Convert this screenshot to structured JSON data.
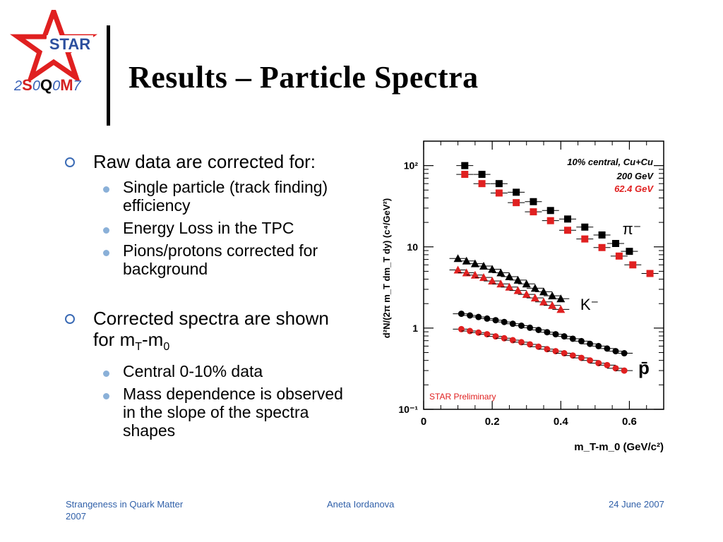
{
  "logo": {
    "star_text": "STAR",
    "bottom": {
      "d1": "2",
      "s": "S",
      "d2": "0",
      "q": "Q",
      "d3": "0",
      "m": "M",
      "d4": "7"
    }
  },
  "title": "Results – Particle Spectra",
  "bullets": [
    {
      "text": "Raw data are corrected for:",
      "sub": [
        "Single particle (track finding) efficiency",
        "Energy Loss in the TPC",
        "Pions/protons corrected for background"
      ]
    },
    {
      "text": "Corrected spectra are shown for m",
      "sub_t": "T",
      "text2": "-m",
      "sub_0": "0",
      "sub": [
        "Central 0-10% data",
        "Mass dependence is observed in the slope of the spectra shapes"
      ]
    }
  ],
  "footer": {
    "left": "Strangeness in Quark Matter 2007",
    "center": "Aneta Iordanova",
    "right": "24 June 2007"
  },
  "colors": {
    "accent": "#3b6bb5",
    "red": "#e02020",
    "footer": "#2f5fa8"
  },
  "chart_data": {
    "type": "scatter",
    "ylabel": "d²N/(2π m_T dm_T dy) (c⁴/GeV²)",
    "xlabel": "m_T-m_0 (GeV/c²)",
    "xlim": [
      0,
      0.7
    ],
    "ylim_log": [
      0.1,
      200
    ],
    "y_scale": "log",
    "x_ticks": [
      "0",
      "0.2",
      "0.4",
      "0.6"
    ],
    "y_ticks": [
      "10⁻¹",
      "1",
      "10",
      "10²"
    ],
    "annotations": {
      "system": "10% central, Cu+Cu",
      "energy_200": "200 GeV",
      "energy_62": "62.4 GeV",
      "preliminary": "STAR Preliminary",
      "pi": "π⁻",
      "k": "K⁻",
      "p": "p̄"
    },
    "series": [
      {
        "name": "π⁻ 200 GeV",
        "marker": "square",
        "color": "#000000",
        "x": [
          0.12,
          0.17,
          0.22,
          0.27,
          0.32,
          0.37,
          0.42,
          0.47,
          0.52,
          0.56,
          0.6
        ],
        "y": [
          100,
          78,
          60,
          47,
          36,
          28,
          22,
          17.5,
          14,
          11,
          8.8
        ]
      },
      {
        "name": "π⁻ 62.4 GeV",
        "marker": "square",
        "color": "#e02020",
        "x": [
          0.12,
          0.17,
          0.22,
          0.27,
          0.32,
          0.37,
          0.42,
          0.47,
          0.52,
          0.57,
          0.61,
          0.66
        ],
        "y": [
          78,
          60,
          46,
          35,
          27,
          21,
          16,
          12.5,
          9.8,
          7.7,
          6,
          4.7
        ]
      },
      {
        "name": "K⁻ 200 GeV",
        "marker": "triangle",
        "color": "#000000",
        "x": [
          0.1,
          0.125,
          0.15,
          0.175,
          0.2,
          0.225,
          0.25,
          0.275,
          0.3,
          0.325,
          0.35,
          0.375,
          0.4
        ],
        "y": [
          7.2,
          6.7,
          6.2,
          5.8,
          5.3,
          4.8,
          4.3,
          3.9,
          3.5,
          3.1,
          2.8,
          2.5,
          2.3
        ]
      },
      {
        "name": "K⁻ 62.4 GeV",
        "marker": "triangle",
        "color": "#e02020",
        "x": [
          0.1,
          0.125,
          0.15,
          0.175,
          0.2,
          0.225,
          0.25,
          0.275,
          0.3,
          0.325,
          0.35,
          0.375,
          0.4
        ],
        "y": [
          5.2,
          4.8,
          4.5,
          4.2,
          3.8,
          3.5,
          3.2,
          2.9,
          2.6,
          2.35,
          2.1,
          1.9,
          1.7
        ]
      },
      {
        "name": "p̄ 200 GeV",
        "marker": "circle",
        "color": "#000000",
        "x": [
          0.11,
          0.135,
          0.16,
          0.185,
          0.21,
          0.235,
          0.26,
          0.285,
          0.31,
          0.335,
          0.36,
          0.385,
          0.41,
          0.435,
          0.46,
          0.485,
          0.51,
          0.535,
          0.56,
          0.585
        ],
        "y": [
          1.5,
          1.43,
          1.37,
          1.31,
          1.25,
          1.19,
          1.13,
          1.07,
          1.01,
          0.95,
          0.89,
          0.84,
          0.79,
          0.74,
          0.69,
          0.64,
          0.6,
          0.56,
          0.52,
          0.49
        ]
      },
      {
        "name": "p̄ 62.4 GeV",
        "marker": "circle",
        "color": "#e02020",
        "x": [
          0.11,
          0.135,
          0.16,
          0.185,
          0.21,
          0.235,
          0.26,
          0.285,
          0.31,
          0.335,
          0.36,
          0.385,
          0.41,
          0.435,
          0.46,
          0.485,
          0.51,
          0.535,
          0.56,
          0.585
        ],
        "y": [
          0.97,
          0.92,
          0.88,
          0.84,
          0.79,
          0.75,
          0.71,
          0.67,
          0.63,
          0.59,
          0.55,
          0.52,
          0.49,
          0.46,
          0.43,
          0.4,
          0.37,
          0.35,
          0.32,
          0.3
        ]
      }
    ]
  }
}
